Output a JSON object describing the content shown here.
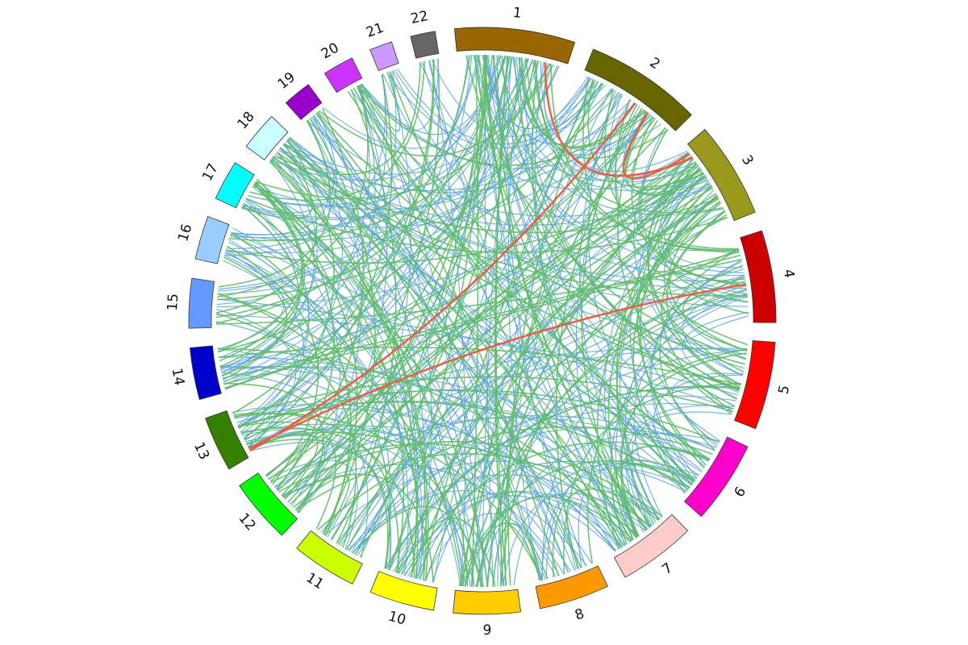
{
  "diagram": {
    "type": "circos-chord",
    "chromosomes": [
      {
        "label": "1",
        "size": 248,
        "color": "#996600"
      },
      {
        "label": "2",
        "size": 242,
        "color": "#666600"
      },
      {
        "label": "3",
        "size": 198,
        "color": "#99991E"
      },
      {
        "label": "4",
        "size": 190,
        "color": "#CC0000"
      },
      {
        "label": "5",
        "size": 181,
        "color": "#FF0000"
      },
      {
        "label": "6",
        "size": 171,
        "color": "#FF00CC"
      },
      {
        "label": "7",
        "size": 159,
        "color": "#FFCCCC"
      },
      {
        "label": "8",
        "size": 145,
        "color": "#FF9900"
      },
      {
        "label": "9",
        "size": 138,
        "color": "#FFCC00"
      },
      {
        "label": "10",
        "size": 134,
        "color": "#FFFF00"
      },
      {
        "label": "11",
        "size": 135,
        "color": "#CCFF00"
      },
      {
        "label": "12",
        "size": 133,
        "color": "#00FF00"
      },
      {
        "label": "13",
        "size": 114,
        "color": "#358000"
      },
      {
        "label": "14",
        "size": 107,
        "color": "#0000CC"
      },
      {
        "label": "15",
        "size": 102,
        "color": "#6699FF"
      },
      {
        "label": "16",
        "size": 90,
        "color": "#99CCFF"
      },
      {
        "label": "17",
        "size": 83,
        "color": "#00FFFF"
      },
      {
        "label": "18",
        "size": 80,
        "color": "#CCFFFF"
      },
      {
        "label": "19",
        "size": 59,
        "color": "#9900CC"
      },
      {
        "label": "20",
        "size": 64,
        "color": "#CC33FF"
      },
      {
        "label": "21",
        "size": 47,
        "color": "#CC99FF"
      },
      {
        "label": "22",
        "size": 51,
        "color": "#666666"
      }
    ],
    "link_colors": {
      "blue": "#5DA5DA",
      "green": "#60BD68",
      "red": "#F15A40"
    },
    "highlight_links": [
      {
        "from": "1",
        "from_pos": 0.8,
        "to": "3",
        "to_pos": 0.15
      },
      {
        "from": "2",
        "from_pos": 0.55,
        "to": "13",
        "to_pos": 0.1
      },
      {
        "from": "3",
        "from_pos": 0.1,
        "to": "2",
        "to_pos": 0.7
      },
      {
        "from": "4",
        "from_pos": 0.55,
        "to": "13",
        "to_pos": 0.15
      }
    ],
    "link_counts": {
      "blue": 230,
      "green": 170
    }
  }
}
